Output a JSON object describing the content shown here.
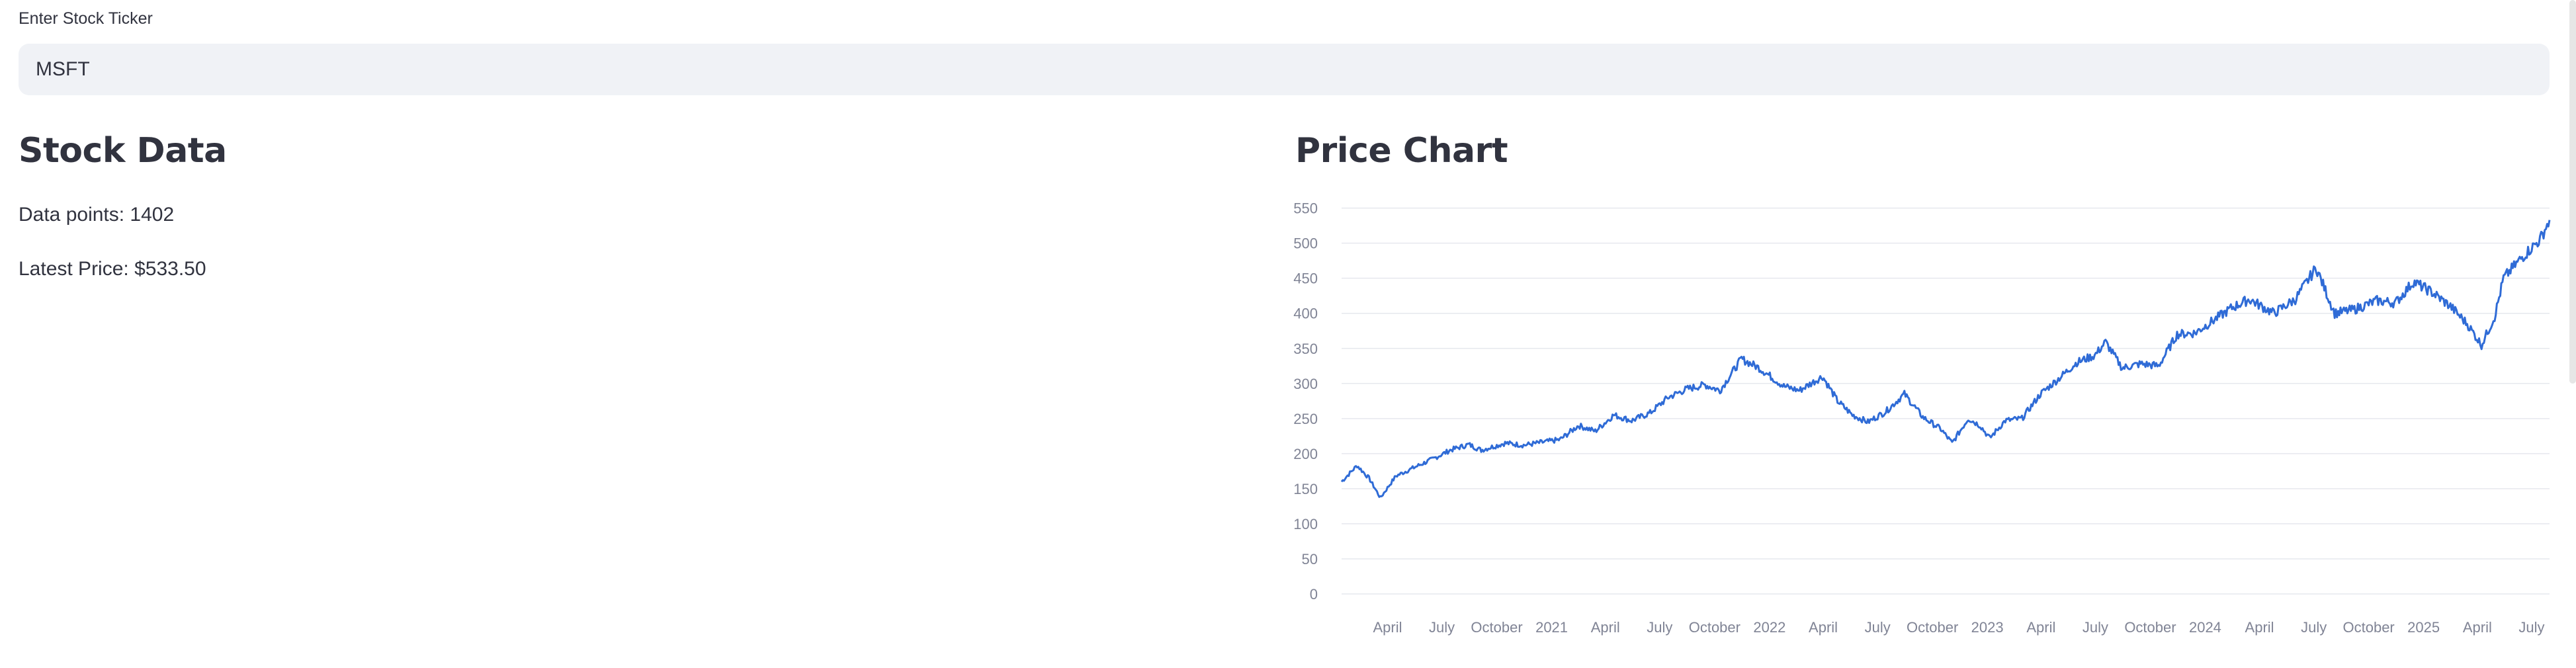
{
  "input": {
    "label": "Enter Stock Ticker",
    "value": "MSFT"
  },
  "stock_data": {
    "title": "Stock Data",
    "data_points_text": "Data points: 1402",
    "latest_price_text": "Latest Price: $533.50"
  },
  "price_chart": {
    "title": "Price Chart"
  },
  "colors": {
    "line": "#2f6bd6",
    "grid": "#e6e8ee",
    "input_bg": "#f0f2f6",
    "text": "#31333f",
    "tick": "#808495"
  },
  "chart_data": {
    "type": "line",
    "title": "",
    "xlabel": "",
    "ylabel": "",
    "ylim": [
      0,
      560
    ],
    "xlim": [
      "2020-01-15",
      "2025-07-31"
    ],
    "yticks": [
      0,
      50,
      100,
      150,
      200,
      250,
      300,
      350,
      400,
      450,
      500,
      550
    ],
    "grid": "horizontal",
    "xticks": [
      {
        "label": "April",
        "date": "2020-04-01"
      },
      {
        "label": "July",
        "date": "2020-07-01"
      },
      {
        "label": "October",
        "date": "2020-10-01"
      },
      {
        "label": "2021",
        "date": "2021-01-01"
      },
      {
        "label": "April",
        "date": "2021-04-01"
      },
      {
        "label": "July",
        "date": "2021-07-01"
      },
      {
        "label": "October",
        "date": "2021-10-01"
      },
      {
        "label": "2022",
        "date": "2022-01-01"
      },
      {
        "label": "April",
        "date": "2022-04-01"
      },
      {
        "label": "July",
        "date": "2022-07-01"
      },
      {
        "label": "October",
        "date": "2022-10-01"
      },
      {
        "label": "2023",
        "date": "2023-01-01"
      },
      {
        "label": "April",
        "date": "2023-04-01"
      },
      {
        "label": "July",
        "date": "2023-07-01"
      },
      {
        "label": "October",
        "date": "2023-10-01"
      },
      {
        "label": "2024",
        "date": "2024-01-01"
      },
      {
        "label": "April",
        "date": "2024-04-01"
      },
      {
        "label": "July",
        "date": "2024-07-01"
      },
      {
        "label": "October",
        "date": "2024-10-01"
      },
      {
        "label": "2025",
        "date": "2025-01-01"
      },
      {
        "label": "April",
        "date": "2025-04-01"
      },
      {
        "label": "July",
        "date": "2025-07-01"
      }
    ],
    "series": [
      {
        "points": [
          [
            "2020-01-15",
            160
          ],
          [
            "2020-02-10",
            183
          ],
          [
            "2020-03-01",
            165
          ],
          [
            "2020-03-20",
            137
          ],
          [
            "2020-04-15",
            168
          ],
          [
            "2020-05-15",
            180
          ],
          [
            "2020-06-15",
            192
          ],
          [
            "2020-07-15",
            205
          ],
          [
            "2020-08-15",
            213
          ],
          [
            "2020-09-05",
            205
          ],
          [
            "2020-10-15",
            215
          ],
          [
            "2020-11-15",
            212
          ],
          [
            "2020-12-15",
            216
          ],
          [
            "2021-01-15",
            220
          ],
          [
            "2021-02-15",
            240
          ],
          [
            "2021-03-15",
            232
          ],
          [
            "2021-04-15",
            255
          ],
          [
            "2021-05-15",
            247
          ],
          [
            "2021-06-15",
            258
          ],
          [
            "2021-07-15",
            280
          ],
          [
            "2021-08-15",
            292
          ],
          [
            "2021-09-15",
            298
          ],
          [
            "2021-10-10",
            290
          ],
          [
            "2021-11-15",
            335
          ],
          [
            "2021-12-15",
            322
          ],
          [
            "2022-01-25",
            296
          ],
          [
            "2022-02-20",
            290
          ],
          [
            "2022-03-31",
            310
          ],
          [
            "2022-04-25",
            275
          ],
          [
            "2022-05-20",
            255
          ],
          [
            "2022-06-15",
            245
          ],
          [
            "2022-07-15",
            260
          ],
          [
            "2022-08-15",
            285
          ],
          [
            "2022-09-15",
            252
          ],
          [
            "2022-10-15",
            235
          ],
          [
            "2022-11-03",
            215
          ],
          [
            "2022-11-30",
            250
          ],
          [
            "2022-12-20",
            240
          ],
          [
            "2023-01-05",
            222
          ],
          [
            "2023-01-31",
            247
          ],
          [
            "2023-02-28",
            250
          ],
          [
            "2023-03-31",
            285
          ],
          [
            "2023-04-28",
            305
          ],
          [
            "2023-05-31",
            330
          ],
          [
            "2023-06-30",
            340
          ],
          [
            "2023-07-18",
            359
          ],
          [
            "2023-08-15",
            322
          ],
          [
            "2023-09-15",
            328
          ],
          [
            "2023-10-15",
            325
          ],
          [
            "2023-11-15",
            370
          ],
          [
            "2023-12-15",
            372
          ],
          [
            "2024-01-15",
            390
          ],
          [
            "2024-02-15",
            408
          ],
          [
            "2024-03-15",
            420
          ],
          [
            "2024-04-25",
            400
          ],
          [
            "2024-05-31",
            420
          ],
          [
            "2024-07-05",
            465
          ],
          [
            "2024-08-05",
            400
          ],
          [
            "2024-09-05",
            405
          ],
          [
            "2024-10-15",
            418
          ],
          [
            "2024-11-15",
            415
          ],
          [
            "2024-12-15",
            445
          ],
          [
            "2025-01-15",
            430
          ],
          [
            "2025-02-15",
            410
          ],
          [
            "2025-03-15",
            385
          ],
          [
            "2025-04-08",
            355
          ],
          [
            "2025-04-30",
            395
          ],
          [
            "2025-05-15",
            450
          ],
          [
            "2025-06-15",
            480
          ],
          [
            "2025-07-15",
            505
          ],
          [
            "2025-07-31",
            533
          ]
        ]
      }
    ]
  }
}
